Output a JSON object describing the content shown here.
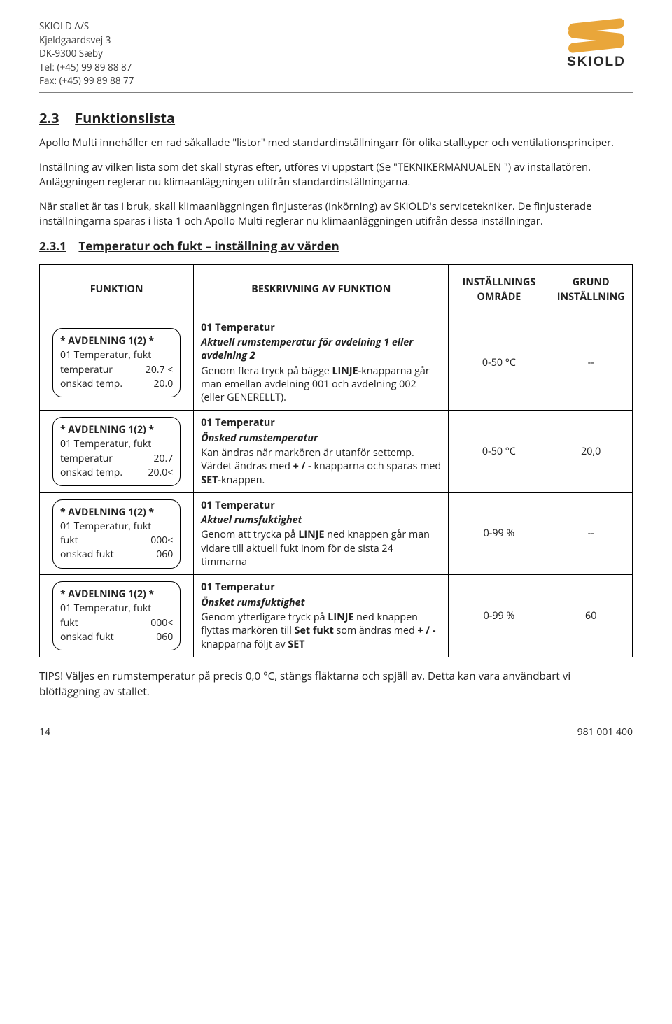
{
  "company": {
    "name": "SKIOLD A/S",
    "addr1": "Kjeldgaardsvej 3",
    "addr2": "DK-9300 Sæby",
    "tel": "Tel: (+45) 99 89 88 87",
    "fax": "Fax: (+45) 99 89 88 77",
    "logo_text": "SKIOLD",
    "logo_color": "#e9a63a"
  },
  "section": {
    "num": "2.3",
    "title": "Funktionslista"
  },
  "p1": "Apollo Multi innehåller en rad såkallade \"listor\" med standardinställningarr för olika stalltyper och ventilationsprinciper.",
  "p2": "Inställning av vilken lista som det skall styras efter, utföres vi uppstart (Se \"TEKNIKERMANUALEN \") av installatören. Anläggningen reglerar nu klimaanläggningen utifrån standardinställningarna.",
  "p3": "När stallet är tas i bruk, skall klimaanläggningen finjusteras (inkörning) av SKIOLD's servicetekniker. De finjusterade inställningarna sparas i lista 1 och Apollo Multi reglerar nu klimaanläggningen utifrån dessa inställningar.",
  "subsection": {
    "num": "2.3.1",
    "title": "Temperatur och fukt – inställning av värden"
  },
  "headers": {
    "c1": "FUNKTION",
    "c2": "BESKRIVNING AV FUNKTION",
    "c3_a": "INSTÄLLNINGS",
    "c3_b": "OMRÅDE",
    "c4_a": "GRUND",
    "c4_b": "INSTÄLLNING"
  },
  "rows": [
    {
      "panel": {
        "title": "* AVDELNING 1(2) *",
        "line2": "01 Temperatur, fukt",
        "r1a": "temperatur",
        "r1b": "20.7 <",
        "r2a": "onskad temp.",
        "r2b": "20.0"
      },
      "desc_title": "01 Temperatur",
      "desc_sub": "Aktuell rumstemperatur för avdelning 1 eller avdelning 2",
      "desc_body": "Genom flera tryck på bägge <b>LINJE</b>-knapparna går man emellan avdelning 001 och avdelning 002<br>(eller GENERELLT).",
      "range": "0-50 °C",
      "default": "--"
    },
    {
      "panel": {
        "title": "* AVDELNING 1(2) *",
        "line2": "01 Temperatur, fukt",
        "r1a": "temperatur",
        "r1b": "20.7",
        "r2a": "onskad temp.",
        "r2b": "20.0<"
      },
      "desc_title": "01 Temperatur",
      "desc_sub": "Önsked rumstemperatur",
      "desc_body": "Kan ändras när markören är utanför settemp.<br>Värdet ändras med <b>+ / -</b> knapparna och sparas med <b>SET</b>-knappen.",
      "range": "0-50 °C",
      "default": "20,0"
    },
    {
      "panel": {
        "title": "* AVDELNING 1(2) *",
        "line2": "01 Temperatur, fukt",
        "r1a": "fukt",
        "r1b": "000<",
        "r2a": "onskad fukt",
        "r2b": "060"
      },
      "desc_title": "01 Temperatur",
      "desc_sub": "Aktuel rumsfuktighet",
      "desc_body": "Genom att trycka på <b>LINJE</b> ned knappen går man vidare till aktuell fukt inom för de sista 24 timmarna",
      "range": "0-99 %",
      "default": "--"
    },
    {
      "panel": {
        "title": "* AVDELNING 1(2) *",
        "line2": "01 Temperatur, fukt",
        "r1a": "fukt",
        "r1b": "000<",
        "r2a": "onskad fukt",
        "r2b": "060"
      },
      "desc_title": "01 Temperatur",
      "desc_sub": "Önsket rumsfuktighet",
      "desc_body": "Genom ytterligare tryck på <b>LINJE</b> ned knappen flyttas markören till <b>Set fukt</b> som ändras med <b>+ / -</b> knapparna följt av <b>SET</b>",
      "range": "0-99 %",
      "default": "60"
    }
  ],
  "tips": "TIPS! Väljes en rumstemperatur på precis 0,0 °C, stängs fläktarna och spjäll av. Detta kan vara användbart vi blötläggning av stallet.",
  "footer": {
    "page": "14",
    "doc_no": "981 001 400"
  }
}
